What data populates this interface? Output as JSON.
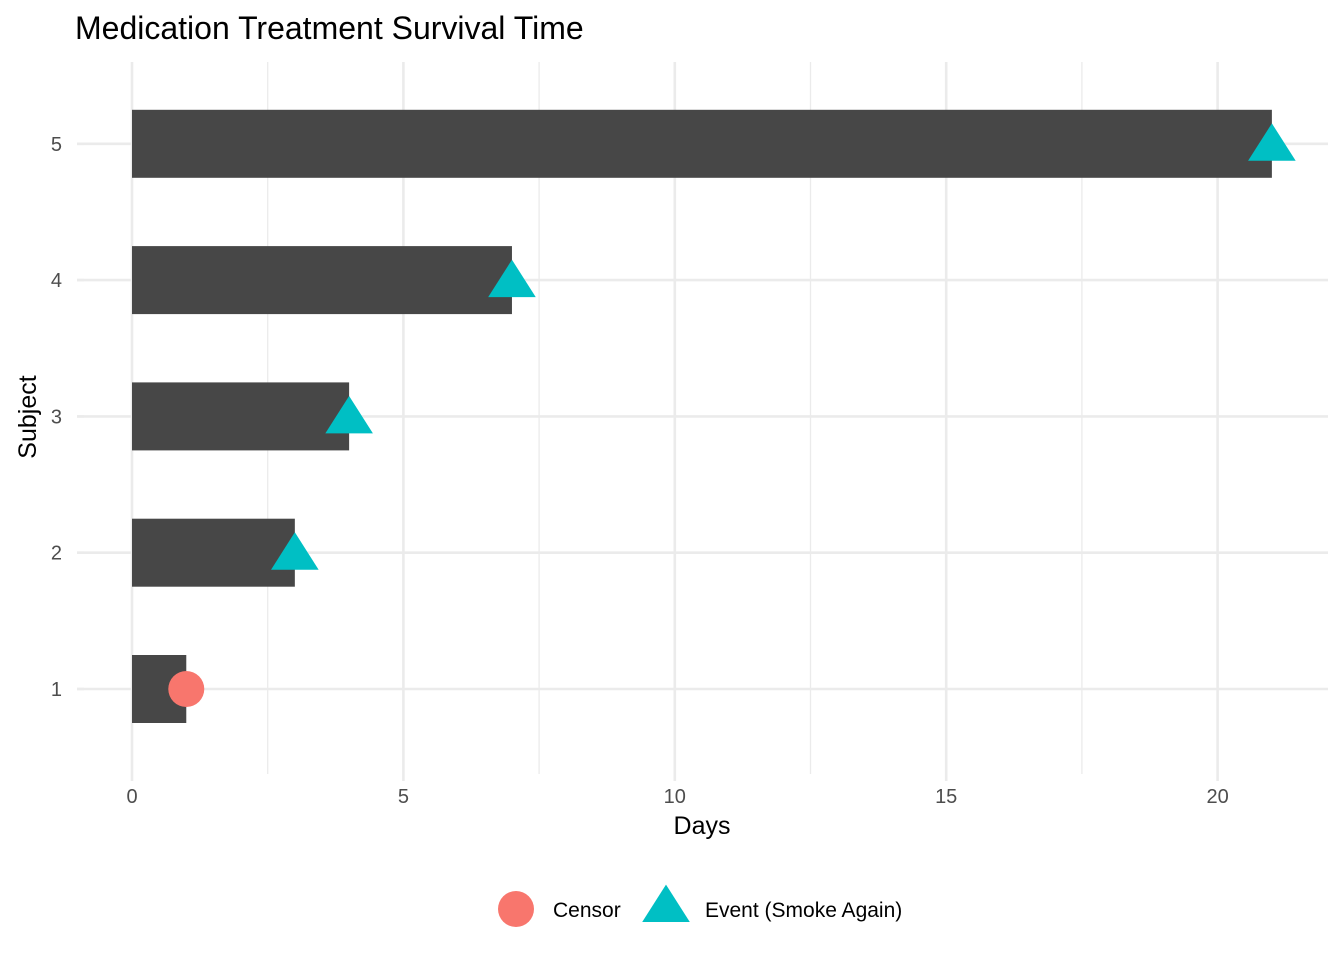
{
  "chart_data": {
    "type": "bar",
    "orientation": "horizontal",
    "title": "Medication Treatment Survival Time",
    "xlabel": "Days",
    "ylabel": "Subject",
    "categories": [
      "1",
      "2",
      "3",
      "4",
      "5"
    ],
    "values": [
      1,
      3,
      4,
      7,
      21
    ],
    "xlim": [
      0,
      22
    ],
    "xticks": [
      "0",
      "5",
      "10",
      "15",
      "20"
    ],
    "grid": true,
    "bar_color": "#474747",
    "markers": [
      {
        "subject": "1",
        "x": 1,
        "status": "Censor"
      },
      {
        "subject": "2",
        "x": 3,
        "status": "Event (Smoke Again)"
      },
      {
        "subject": "3",
        "x": 4,
        "status": "Event (Smoke Again)"
      },
      {
        "subject": "4",
        "x": 7,
        "status": "Event (Smoke Again)"
      },
      {
        "subject": "5",
        "x": 21,
        "status": "Event (Smoke Again)"
      }
    ],
    "legend": {
      "position": "bottom",
      "entries": [
        {
          "label": "Censor",
          "shape": "circle",
          "color": "#F8766D"
        },
        {
          "label": "Event (Smoke Again)",
          "shape": "triangle",
          "color": "#00BFC4"
        }
      ]
    }
  }
}
